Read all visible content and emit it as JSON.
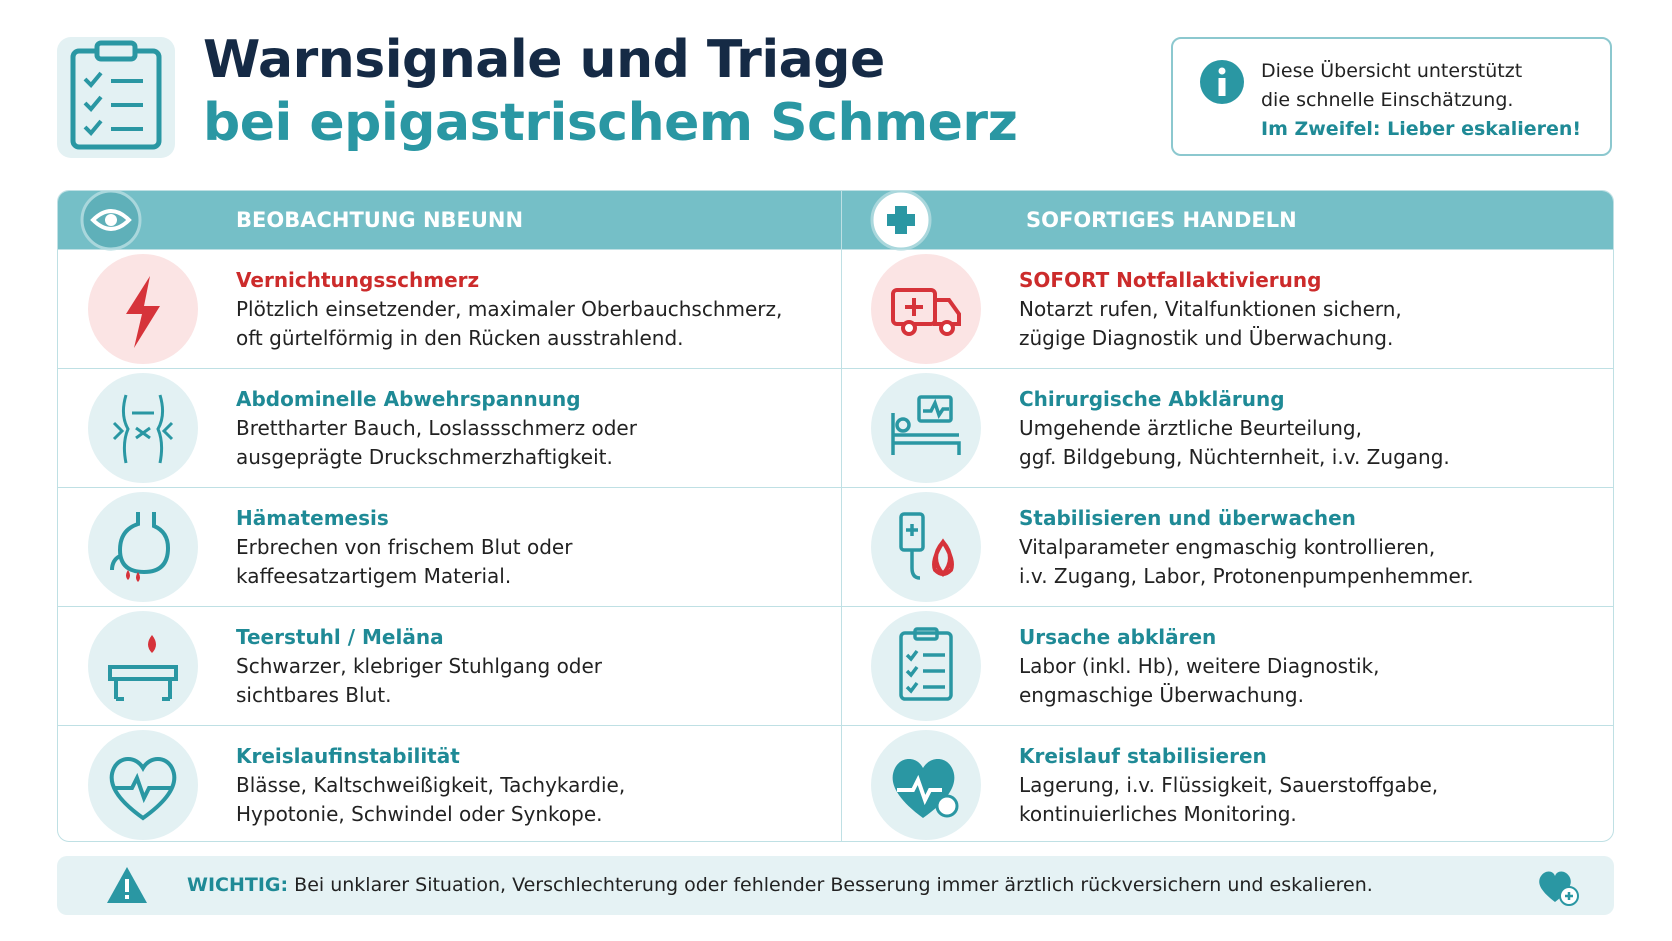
{
  "header": {
    "title_line1": "Warnsignale und Triage",
    "title_line2": "bei epigastrischem Schmerz",
    "info": {
      "lines": [
        "Diese Übersicht unterstützt",
        "die schnelle Einschätzung."
      ],
      "emphasis": "Im Zweifel: Lieber eskalieren!"
    }
  },
  "table": {
    "headers": [
      "BEOBACHTUNG NBEUNN",
      "SOFORTIGES HANDELN"
    ],
    "rows": [
      {
        "left": {
          "title": "Vernichtungsschmerz",
          "lines": [
            "Plötzlich einsetzender, maximaler Oberbauchschmerz,",
            "oft gürtelförmig in den Rücken ausstrahlend."
          ]
        },
        "right": {
          "title": "SOFORT Notfallaktivierung",
          "lines": [
            "Notarzt rufen, Vitalfunktionen sichern,",
            "zügige Diagnostik und Überwachung."
          ]
        }
      },
      {
        "left": {
          "title": "Abdominelle Abwehrspannung",
          "lines": [
            "Bretthart​er Bauch, Loslassschmerz oder",
            "ausgeprägte Druckschmerzhaftigkeit."
          ]
        },
        "right": {
          "title": "Chirurgische Abklärung",
          "lines": [
            "Umgehende ärztliche Beurteilung,",
            "ggf. Bildgebung, Nüchternheit, i.v. Zugang."
          ]
        }
      },
      {
        "left": {
          "title": "Hämatemesis",
          "lines": [
            "Erbrechen von frischem Blut oder",
            "kaffeesatzartigem Material."
          ]
        },
        "right": {
          "title": "Stabilisieren und überwachen",
          "lines": [
            "Vitalparameter engmaschig kontrollieren,",
            "i.v. Zugang, Labor, Protonenpumpenhemmer."
          ]
        }
      },
      {
        "left": {
          "title": "Teerstuhl / Meläna",
          "lines": [
            "Schwarzer, klebriger Stuhlgang oder",
            "sichtbares Blut."
          ]
        },
        "right": {
          "title": "Ursache abklären",
          "lines": [
            "Labor (inkl. Hb), weitere Diagnostik,",
            "engmaschige Überwachung."
          ]
        }
      },
      {
        "left": {
          "title": "Kreislaufinstabilität",
          "lines": [
            "Blässe, Kaltschweißigkeit, Tachykardie,",
            "Hypotonie, Schwindel oder Synkope."
          ]
        },
        "right": {
          "title": "Kreislauf stabilisieren",
          "lines": [
            "Lagerung, i.v. Flüssigkeit, Sauerstoffgabe,",
            "kontinuierliches Monitoring."
          ]
        }
      }
    ]
  },
  "footer": {
    "label": "WICHTIG:",
    "text": "Bei unklarer Situation, Verschlechterung oder fehlender Besserung immer ärztlich rückversichern und eskalieren."
  }
}
